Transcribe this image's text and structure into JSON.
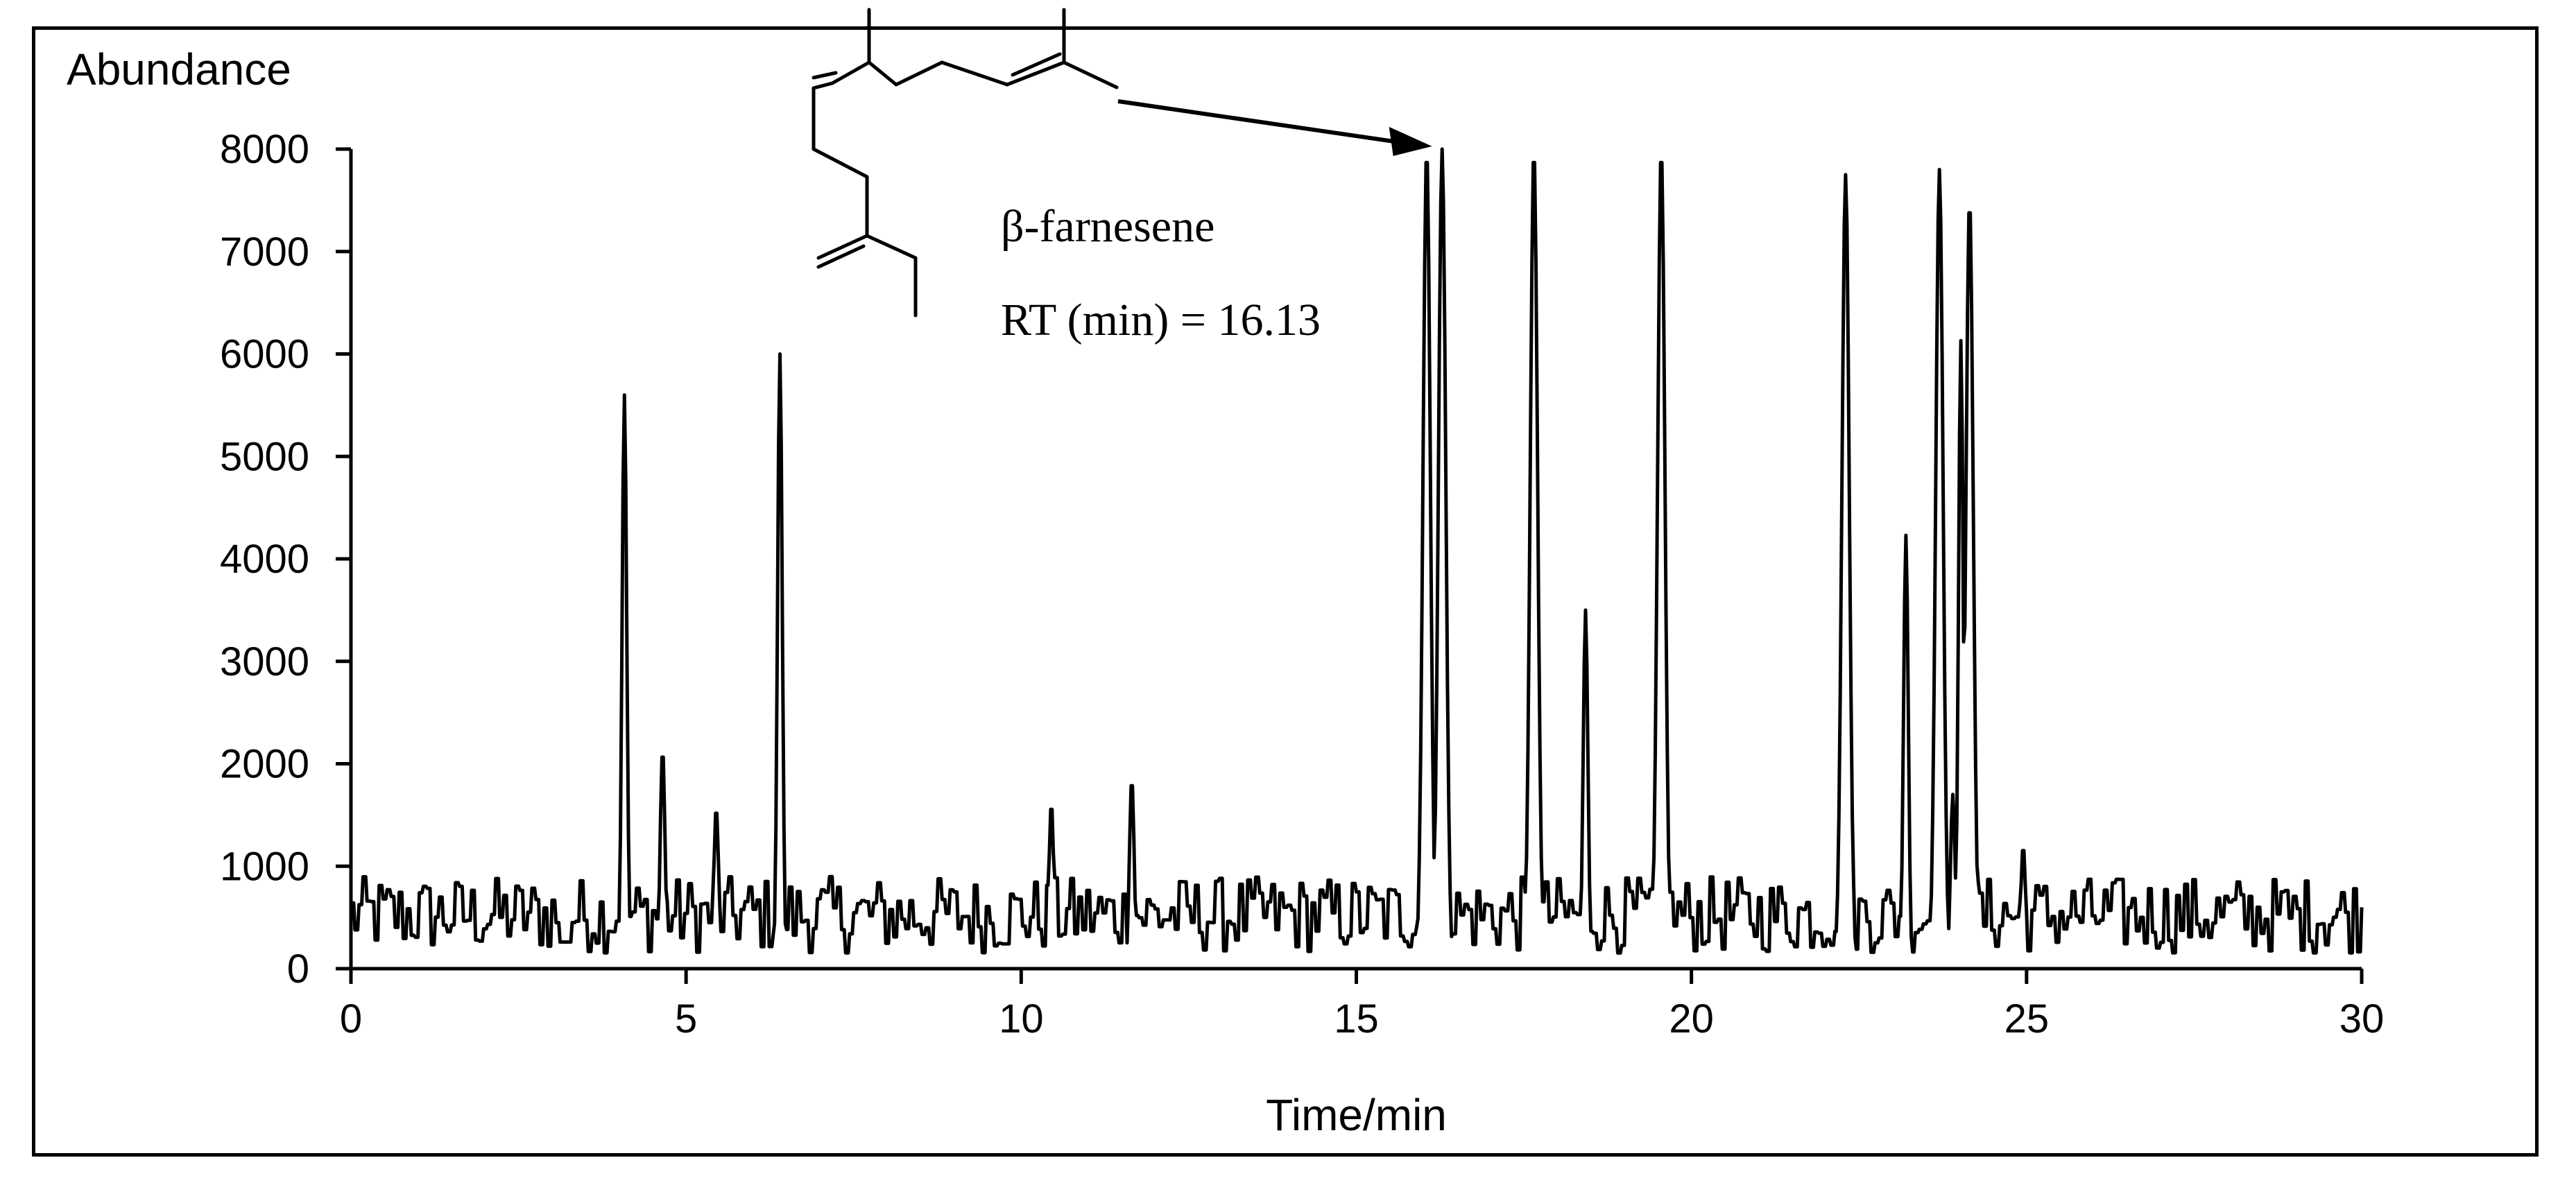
{
  "chart_data": {
    "type": "line",
    "xlabel": "Time/min",
    "ylabel": "Abundance",
    "xlim": [
      0,
      30
    ],
    "ylim": [
      0,
      8000
    ],
    "x_ticks": [
      0,
      5,
      10,
      15,
      20,
      25,
      30
    ],
    "y_ticks": [
      0,
      1000,
      2000,
      3000,
      4000,
      5000,
      6000,
      7000,
      8000
    ],
    "grid": false,
    "colors": {
      "trace": "#000000",
      "axis": "#000000"
    },
    "annotations": {
      "compound": "β-farnesene",
      "retention": "RT (min) = 16.13",
      "arrow_target_x": 16.13,
      "arrow_target_y": 8000
    },
    "peaks": [
      {
        "x": 4.08,
        "y": 5600
      },
      {
        "x": 4.65,
        "y": 2150
      },
      {
        "x": 5.45,
        "y": 1580
      },
      {
        "x": 6.4,
        "y": 6000
      },
      {
        "x": 10.45,
        "y": 1620
      },
      {
        "x": 11.65,
        "y": 1860
      },
      {
        "x": 16.05,
        "y": 8000
      },
      {
        "x": 16.28,
        "y": 8000
      },
      {
        "x": 17.65,
        "y": 8000
      },
      {
        "x": 18.42,
        "y": 3500
      },
      {
        "x": 19.55,
        "y": 8000
      },
      {
        "x": 22.3,
        "y": 7750
      },
      {
        "x": 23.2,
        "y": 4230
      },
      {
        "x": 23.7,
        "y": 7800
      },
      {
        "x": 23.9,
        "y": 1700
      },
      {
        "x": 24.02,
        "y": 6130
      },
      {
        "x": 24.15,
        "y": 7500
      },
      {
        "x": 24.95,
        "y": 1200
      }
    ]
  }
}
